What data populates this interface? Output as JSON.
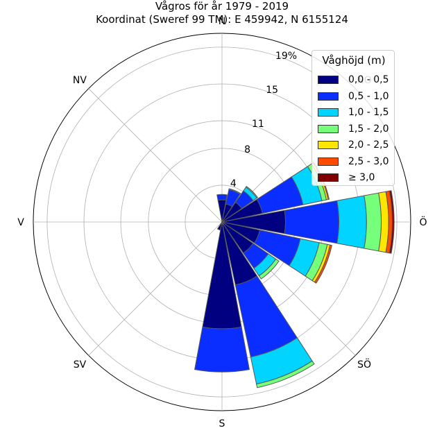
{
  "title_line1": "Vågros för år 1979 - 2019",
  "title_line2": "Koordinat (Sweref 99 TM): E 459942, N 6155124",
  "legend": {
    "title": "Våghöjd (m)",
    "items": [
      {
        "label": "0,0 - 0,5",
        "color": "#000080"
      },
      {
        "label": "0,5 - 1,0",
        "color": "#0a2eff"
      },
      {
        "label": "1,0 - 1,5",
        "color": "#00d4ff"
      },
      {
        "label": "1,5 - 2,0",
        "color": "#76ff7a"
      },
      {
        "label": "2,0 - 2,5",
        "color": "#ffe600"
      },
      {
        "label": "2,5 - 3,0",
        "color": "#ff4a00"
      },
      {
        "label": "≥ 3,0",
        "color": "#800000"
      }
    ]
  },
  "chart_data": {
    "type": "polar-stacked-bar",
    "direction_labels": [
      "N",
      "NO",
      "Ö",
      "SÖ",
      "S",
      "SV",
      "V",
      "NV"
    ],
    "radial_ticks": [
      4,
      8,
      11,
      15,
      19
    ],
    "radial_tick_labels": [
      "4",
      "8",
      "11",
      "15",
      "19%"
    ],
    "rmax": 20.5,
    "bin_labels": [
      "0,0 - 0,5",
      "0,5 - 1,0",
      "1,0 - 1,5",
      "1,5 - 2,0",
      "2,0 - 2,5",
      "2,5 - 3,0",
      "≥ 3,0"
    ],
    "sectors": [
      {
        "direction_deg": 0,
        "values": [
          2.4,
          0.6,
          0,
          0,
          0,
          0,
          0
        ]
      },
      {
        "direction_deg": 22.5,
        "values": [
          2.0,
          1.6,
          0.1,
          0,
          0,
          0,
          0
        ]
      },
      {
        "direction_deg": 45,
        "values": [
          2.6,
          1.5,
          0.5,
          0.1,
          0,
          0,
          0
        ]
      },
      {
        "direction_deg": 67.5,
        "values": [
          4.5,
          4.5,
          2.1,
          0.5,
          0.2,
          0.1,
          0
        ]
      },
      {
        "direction_deg": 90,
        "values": [
          6.9,
          5.8,
          3.0,
          1.6,
          0.8,
          0.4,
          0.2
        ]
      },
      {
        "direction_deg": 112.5,
        "values": [
          4.2,
          4.5,
          2.1,
          0.9,
          0.3,
          0.2,
          0
        ]
      },
      {
        "direction_deg": 135,
        "values": [
          4.1,
          2.0,
          1.0,
          0.4,
          0,
          0,
          0
        ]
      },
      {
        "direction_deg": 157.5,
        "values": [
          7.0,
          8.0,
          3.0,
          0.4,
          0,
          0,
          0
        ]
      },
      {
        "direction_deg": 180,
        "values": [
          11.6,
          4.7,
          0,
          0,
          0,
          0,
          0
        ]
      },
      {
        "direction_deg": 202.5,
        "values": [
          0.9,
          0,
          0,
          0,
          0,
          0,
          0
        ]
      }
    ]
  }
}
